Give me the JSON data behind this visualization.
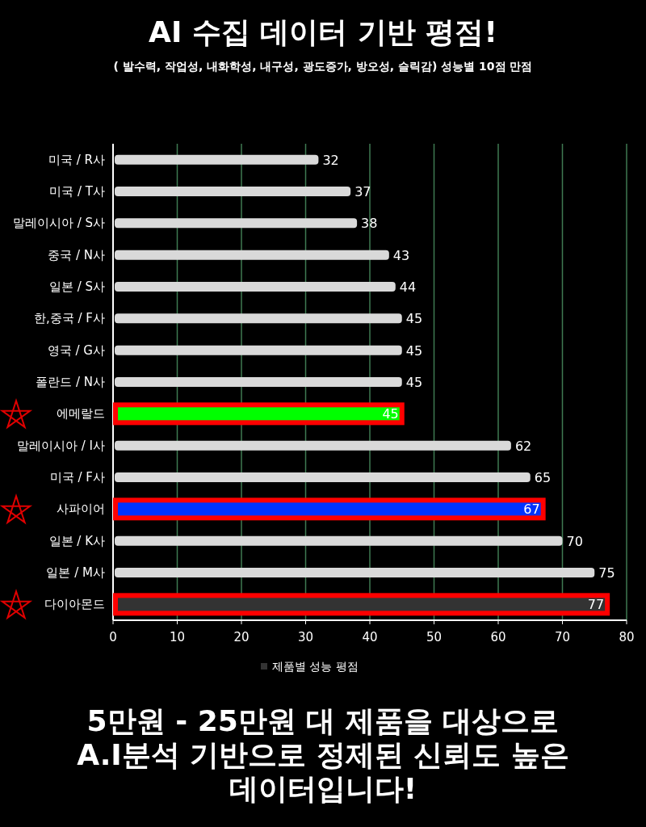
{
  "chart_data": {
    "type": "bar",
    "orientation": "horizontal",
    "title": "AI 수집 데이터 기반 평점!",
    "subtitle": "( 발수력, 작업성, 내화학성, 내구성, 광도증가, 방오성, 슬릭감) 성능별 10점 만점",
    "categories": [
      "미국 / R사",
      "미국 / T사",
      "말레이시아 / S사",
      "중국 / N사",
      "일본 / S사",
      "한,중국 / F사",
      "영국 / G사",
      "폴란드 / N사",
      "에메랄드",
      "말레이시아 / I사",
      "미국 / F사",
      "사파이어",
      "일본 / K사",
      "일본 / M사",
      "다이아몬드"
    ],
    "series": [
      {
        "name": "제품별 성능 평점",
        "color": "#333333",
        "values": [
          32,
          37,
          38,
          43,
          44,
          45,
          45,
          45,
          45,
          62,
          65,
          67,
          70,
          75,
          77
        ],
        "colors": [
          "#d9d9d9",
          "#d9d9d9",
          "#d9d9d9",
          "#d9d9d9",
          "#d9d9d9",
          "#d9d9d9",
          "#d9d9d9",
          "#d9d9d9",
          "#00ff00",
          "#d9d9d9",
          "#d9d9d9",
          "#0033ff",
          "#d9d9d9",
          "#d9d9d9",
          "#333333"
        ]
      }
    ],
    "xlim": [
      0,
      80
    ],
    "xticks": [
      0,
      10,
      20,
      30,
      40,
      50,
      60,
      70,
      80
    ],
    "grid": "x",
    "data_labels": true,
    "legend": "bottom",
    "annotations": [
      "5만원 - 25만원 대 제품을 대상으로 A.I분석 기반으로 정제된 신뢰도 높은 데이터입니다!"
    ]
  }
}
